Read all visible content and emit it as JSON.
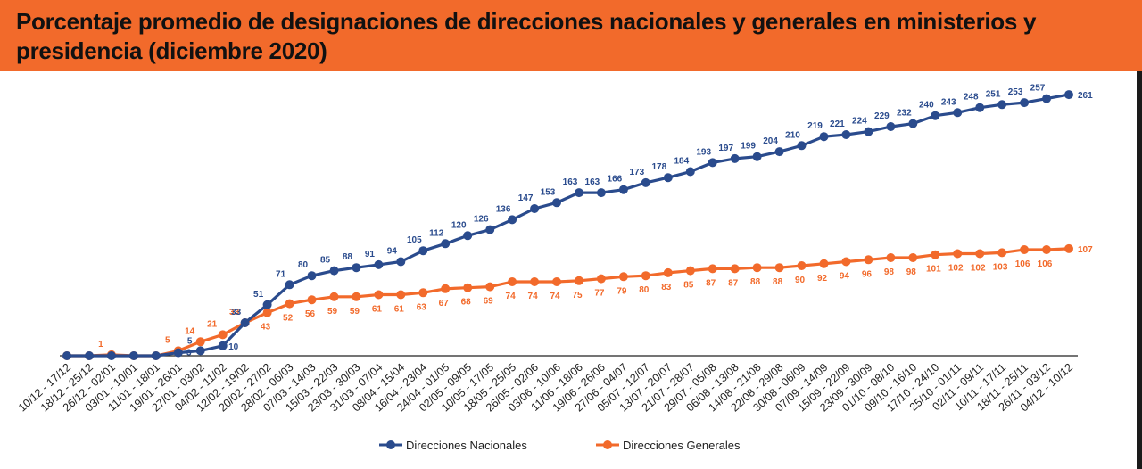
{
  "title": "Porcentaje promedio de designaciones de direcciones nacionales y generales en ministerios y presidencia (diciembre 2020)",
  "colors": {
    "title_band": "#f26a2b",
    "nacionales": "#2a4b8d",
    "generales": "#f26a2b"
  },
  "chart_data": {
    "type": "line",
    "title": "Porcentaje promedio de designaciones de direcciones nacionales y generales en ministerios y presidencia (diciembre 2020)",
    "xlabel": "",
    "ylabel": "",
    "ylim": [
      0,
      270
    ],
    "grid": false,
    "legend": "bottom",
    "categories": [
      "10/12 - 17/12",
      "18/12 - 25/12",
      "26/12 - 02/01",
      "03/01 - 10/01",
      "11/01 - 18/01",
      "19/01 - 26/01",
      "27/01 - 03/02",
      "04/02 - 11/02",
      "12/02 - 19/02",
      "20/02 - 27/02",
      "28/02 - 06/03",
      "07/03 - 14/03",
      "15/03 - 22/03",
      "23/03 - 30/03",
      "31/03 - 07/04",
      "08/04 - 15/04",
      "16/04 - 23/04",
      "24/04 - 01/05",
      "02/05 - 09/05",
      "10/05 - 17/05",
      "18/05 - 25/05",
      "26/05 - 02/06",
      "03/06 - 10/06",
      "11/06 - 18/06",
      "19/06 - 26/06",
      "27/06 - 04/07",
      "05/07 - 12/07",
      "13/07 - 20/07",
      "21/07 - 28/07",
      "29/07 - 05/08",
      "06/08 - 13/08",
      "14/08 - 21/08",
      "22/08 - 29/08",
      "30/08 - 06/09",
      "07/09 - 14/09",
      "15/09 - 22/09",
      "23/09 - 30/09",
      "01/10 - 08/10",
      "09/10 - 16/10",
      "17/10 - 24/10",
      "25/10 - 01/11",
      "02/11 - 09/11",
      "10/11 - 17/11",
      "18/11 - 25/11",
      "26/11 - 03/12",
      "04/12 - 10/12"
    ],
    "series": [
      {
        "name": "Direcciones Nacionales",
        "values": [
          0,
          0,
          0,
          0,
          0,
          3,
          5,
          10,
          33,
          51,
          71,
          80,
          85,
          88,
          91,
          94,
          105,
          112,
          120,
          126,
          136,
          147,
          153,
          163,
          163,
          166,
          173,
          178,
          184,
          193,
          197,
          199,
          204,
          210,
          219,
          221,
          224,
          229,
          232,
          240,
          243,
          248,
          251,
          253,
          257,
          261
        ],
        "labels": [
          "",
          "",
          "",
          "",
          "",
          "3",
          "5",
          "10",
          "33",
          "51",
          "71",
          "80",
          "85",
          "88",
          "91",
          "94",
          "105",
          "112",
          "120",
          "126",
          "136",
          "147",
          "153",
          "163",
          "163",
          "166",
          "173",
          "178",
          "184",
          "193",
          "197",
          "199",
          "204",
          "210",
          "219",
          "221",
          "224",
          "229",
          "232",
          "240",
          "243",
          "248",
          "251",
          "253",
          "257",
          "261"
        ]
      },
      {
        "name": "Direcciones Generales",
        "values": [
          0,
          0,
          1,
          0,
          0,
          5,
          14,
          21,
          33,
          43,
          52,
          56,
          59,
          59,
          61,
          61,
          63,
          67,
          68,
          69,
          74,
          74,
          74,
          75,
          77,
          79,
          80,
          83,
          85,
          87,
          87,
          88,
          88,
          90,
          92,
          94,
          96,
          98,
          98,
          101,
          102,
          102,
          103,
          106,
          106,
          107
        ],
        "labels": [
          "",
          "",
          "1",
          "",
          "",
          "5",
          "14",
          "21",
          "33",
          "43",
          "52",
          "56",
          "59",
          "59",
          "61",
          "61",
          "63",
          "67",
          "68",
          "69",
          "74",
          "74",
          "74",
          "75",
          "77",
          "79",
          "80",
          "83",
          "85",
          "87",
          "87",
          "88",
          "88",
          "90",
          "92",
          "94",
          "96",
          "98",
          "98",
          "101",
          "102",
          "102",
          "103",
          "106",
          "106",
          "107"
        ]
      }
    ]
  }
}
